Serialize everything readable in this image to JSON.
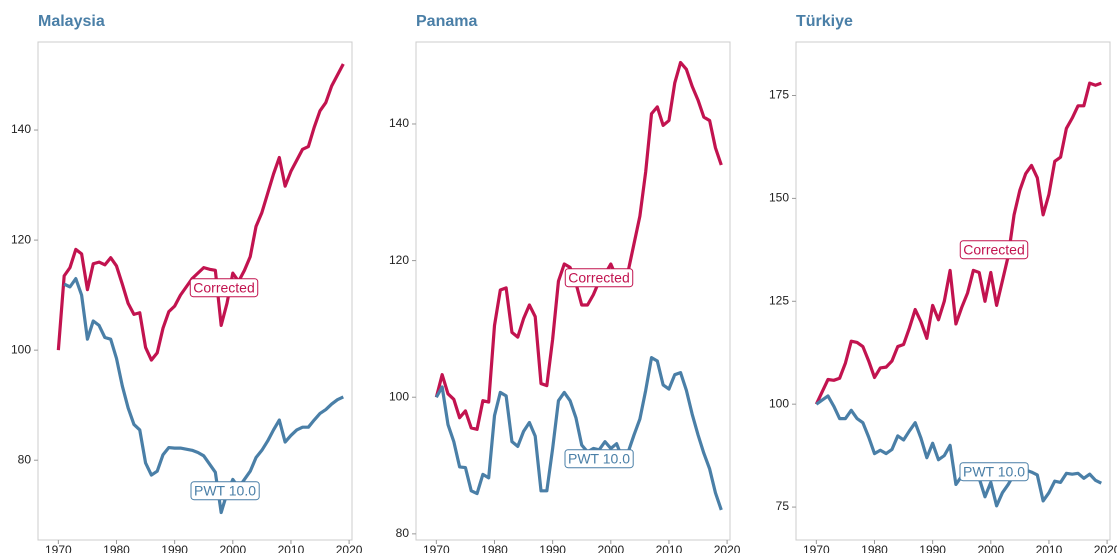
{
  "chart_data": [
    {
      "type": "line",
      "title": "Malaysia",
      "x": [
        1970,
        1971,
        1972,
        1973,
        1974,
        1975,
        1976,
        1977,
        1978,
        1979,
        1980,
        1981,
        1982,
        1983,
        1984,
        1985,
        1986,
        1987,
        1988,
        1989,
        1990,
        1991,
        1992,
        1993,
        1994,
        1995,
        1996,
        1997,
        1998,
        1999,
        2000,
        2001,
        2002,
        2003,
        2004,
        2005,
        2006,
        2007,
        2008,
        2009,
        2010,
        2011,
        2012,
        2013,
        2014,
        2015,
        2016,
        2017,
        2018,
        2019
      ],
      "xlim": [
        1966.5,
        2020.5
      ],
      "xticks": [
        1970,
        1980,
        1990,
        2000,
        2010,
        2020
      ],
      "ylim": [
        65.5,
        156
      ],
      "yticks": [
        80,
        100,
        120,
        140
      ],
      "series": [
        {
          "name": "Corrected",
          "color": "#c2134f",
          "values": [
            100,
            113.5,
            115,
            118.3,
            117.5,
            111,
            115.7,
            116,
            115.5,
            116.8,
            115.3,
            112,
            108.5,
            106.5,
            106.8,
            100.5,
            98.2,
            99.5,
            104,
            107,
            108,
            110,
            111.5,
            113,
            114,
            115,
            114.7,
            114.5,
            104.5,
            108.5,
            114,
            112.5,
            114.5,
            117,
            122.5,
            125,
            128.5,
            132,
            135,
            129.8,
            132.5,
            134.5,
            136.5,
            137,
            140.5,
            143.5,
            145,
            148,
            150,
            152
          ]
        },
        {
          "name": "PWT 10.0",
          "color": "#4a7fa7",
          "values": [
            null,
            112,
            111.5,
            113,
            110,
            102,
            105.3,
            104.5,
            102.3,
            102,
            98.5,
            93.5,
            89.5,
            86.5,
            85.5,
            79.5,
            77.3,
            78,
            81,
            82.3,
            82.2,
            82.2,
            82,
            81.8,
            81.4,
            80.8,
            79.3,
            77.8,
            70.5,
            74,
            76.5,
            75,
            76.5,
            78,
            80.5,
            81.8,
            83.5,
            85.5,
            87.3,
            83.3,
            84.5,
            85.5,
            86,
            86,
            87.3,
            88.5,
            89.2,
            90.2,
            91,
            91.5
          ]
        }
      ]
    },
    {
      "type": "line",
      "title": "Panama",
      "x": [
        1970,
        1971,
        1972,
        1973,
        1974,
        1975,
        1976,
        1977,
        1978,
        1979,
        1980,
        1981,
        1982,
        1983,
        1984,
        1985,
        1986,
        1987,
        1988,
        1989,
        1990,
        1991,
        1992,
        1993,
        1994,
        1995,
        1996,
        1997,
        1998,
        1999,
        2000,
        2001,
        2002,
        2003,
        2004,
        2005,
        2006,
        2007,
        2008,
        2009,
        2010,
        2011,
        2012,
        2013,
        2014,
        2015,
        2016,
        2017,
        2018,
        2019
      ],
      "xlim": [
        1966.5,
        2020.5
      ],
      "xticks": [
        1970,
        1980,
        1990,
        2000,
        2010,
        2020
      ],
      "ylim": [
        79.1,
        152
      ],
      "yticks": [
        80,
        100,
        120,
        140
      ],
      "series": [
        {
          "name": "Corrected",
          "color": "#c2134f",
          "values": [
            100,
            103.3,
            100.5,
            99.7,
            97,
            98,
            95.5,
            95.3,
            99.5,
            99.3,
            110.5,
            115.7,
            116,
            109.5,
            108.8,
            111.5,
            113.5,
            111.8,
            102,
            101.7,
            108.5,
            117,
            119.5,
            119,
            116.7,
            113.5,
            113.5,
            115,
            117,
            118,
            119.5,
            117.5,
            117.5,
            118.5,
            122.5,
            126.5,
            133,
            141.5,
            142.5,
            139.8,
            140.5,
            146,
            149,
            148,
            145.5,
            143.5,
            141,
            140.5,
            136.5,
            134
          ]
        },
        {
          "name": "PWT 10.0",
          "color": "#4a7fa7",
          "values": [
            100,
            101.5,
            96,
            93.5,
            89.8,
            89.7,
            86.3,
            85.9,
            88.7,
            88.2,
            97.3,
            100.7,
            100.2,
            93.5,
            92.8,
            95,
            96.3,
            94.3,
            86.3,
            86.3,
            92.5,
            99.5,
            100.7,
            99.5,
            97,
            93,
            92,
            92.5,
            92.3,
            93.5,
            92.5,
            93.2,
            91,
            92,
            94.5,
            96.8,
            101,
            105.8,
            105.3,
            101.8,
            101.2,
            103.3,
            103.6,
            101,
            97.5,
            94.5,
            91.8,
            89.5,
            86,
            83.5
          ]
        }
      ]
    },
    {
      "type": "line",
      "title": "Türkiye",
      "x": [
        1970,
        1971,
        1972,
        1973,
        1974,
        1975,
        1976,
        1977,
        1978,
        1979,
        1980,
        1981,
        1982,
        1983,
        1984,
        1985,
        1986,
        1987,
        1988,
        1989,
        1990,
        1991,
        1992,
        1993,
        1994,
        1995,
        1996,
        1997,
        1998,
        1999,
        2000,
        2001,
        2002,
        2003,
        2004,
        2005,
        2006,
        2007,
        2008,
        2009,
        2010,
        2011,
        2012,
        2013,
        2014,
        2015,
        2016,
        2017,
        2018,
        2019
      ],
      "xlim": [
        1966.5,
        2020.5
      ],
      "xticks": [
        1970,
        1980,
        1990,
        2000,
        2010,
        2020
      ],
      "ylim": [
        67,
        188
      ],
      "yticks": [
        75,
        100,
        125,
        150,
        175
      ],
      "series": [
        {
          "name": "Corrected",
          "color": "#c2134f",
          "values": [
            100,
            103,
            106,
            105.8,
            106.3,
            110,
            115.3,
            115,
            114,
            110.5,
            106.5,
            108.8,
            109,
            110.5,
            114,
            114.5,
            118.5,
            123,
            120,
            116,
            124,
            120.5,
            125,
            132.5,
            119.5,
            123.5,
            127,
            132.5,
            132,
            125,
            132,
            124,
            130,
            136,
            146,
            152,
            156,
            158,
            155,
            146,
            151,
            159,
            160,
            167,
            169.5,
            172.5,
            172.5,
            178,
            177.5,
            178
          ]
        },
        {
          "name": "PWT 10.0",
          "color": "#4a7fa7",
          "values": [
            100,
            101,
            102,
            99.5,
            96.5,
            96.5,
            98.5,
            96.5,
            95.5,
            92,
            88,
            88.8,
            88,
            89,
            92.3,
            91.3,
            93.5,
            95.5,
            91.7,
            87,
            90.5,
            86.5,
            87.5,
            90,
            80.5,
            82.5,
            83,
            84,
            82,
            77.5,
            81,
            75.3,
            78.5,
            80.5,
            83,
            84.5,
            84,
            83.5,
            82.8,
            76.5,
            78.5,
            81.3,
            81,
            83.2,
            83,
            83.2,
            82,
            83,
            81.5,
            80.8
          ]
        }
      ]
    }
  ]
}
